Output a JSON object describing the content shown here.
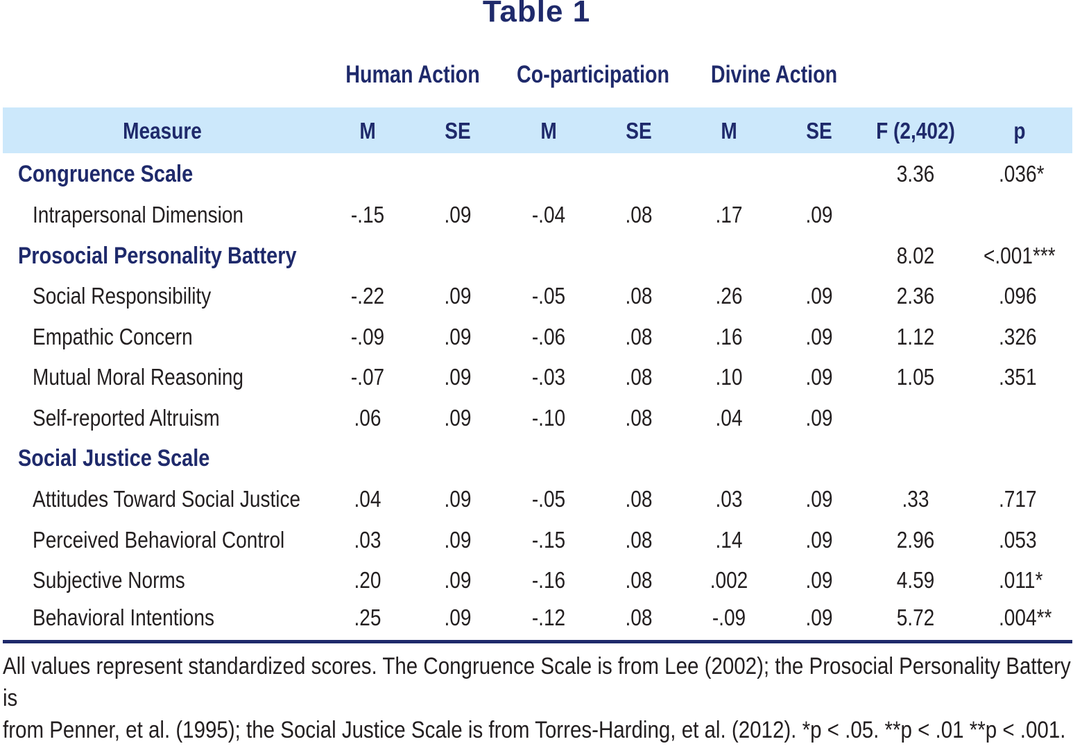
{
  "title": "Table 1",
  "groups": [
    "Human Action",
    "Co-participation",
    "Divine Action"
  ],
  "columns": [
    "Measure",
    "M",
    "SE",
    "M",
    "SE",
    "M",
    "SE",
    "F (2,402)",
    "p"
  ],
  "rows": [
    {
      "type": "section",
      "label": "Congruence Scale",
      "values": [
        "",
        "",
        "",
        "",
        "",
        "",
        "3.36",
        ".036*"
      ]
    },
    {
      "type": "item",
      "label": "Intrapersonal Dimension",
      "values": [
        "-.15",
        ".09",
        "-.04",
        ".08",
        ".17",
        ".09",
        "",
        ""
      ]
    },
    {
      "type": "section",
      "label": "Prosocial Personality Battery",
      "values": [
        "",
        "",
        "",
        "",
        "",
        "",
        "8.02",
        "<.001***"
      ]
    },
    {
      "type": "item",
      "label": "Social Responsibility",
      "values": [
        "-.22",
        ".09",
        "-.05",
        ".08",
        ".26",
        ".09",
        "2.36",
        ".096"
      ]
    },
    {
      "type": "item",
      "label": "Empathic Concern",
      "values": [
        "-.09",
        ".09",
        "-.06",
        ".08",
        ".16",
        ".09",
        "1.12",
        ".326"
      ]
    },
    {
      "type": "item",
      "label": "Mutual Moral Reasoning",
      "values": [
        "-.07",
        ".09",
        "-.03",
        ".08",
        ".10",
        ".09",
        "1.05",
        ".351"
      ]
    },
    {
      "type": "item",
      "label": "Self-reported Altruism",
      "values": [
        ".06",
        ".09",
        "-.10",
        ".08",
        ".04",
        ".09",
        "",
        ""
      ]
    },
    {
      "type": "section",
      "label": "Social Justice Scale",
      "values": [
        "",
        "",
        "",
        "",
        "",
        "",
        "",
        ""
      ]
    },
    {
      "type": "item",
      "label": "Attitudes Toward Social Justice",
      "values": [
        ".04",
        ".09",
        "-.05",
        ".08",
        ".03",
        ".09",
        ".33",
        ".717"
      ]
    },
    {
      "type": "item",
      "label": "Perceived Behavioral Control",
      "values": [
        ".03",
        ".09",
        "-.15",
        ".08",
        ".14",
        ".09",
        "2.96",
        ".053"
      ]
    },
    {
      "type": "item",
      "label": "Subjective Norms",
      "values": [
        ".20",
        ".09",
        "-.16",
        ".08",
        ".002",
        ".09",
        "4.59",
        ".011*"
      ]
    },
    {
      "type": "item",
      "label": "Behavioral Intentions",
      "values": [
        ".25",
        ".09",
        "-.12",
        ".08",
        "-.09",
        ".09",
        "5.72",
        ".004**"
      ]
    }
  ],
  "note_line1": "All values represent standardized scores. The Congruence Scale is from Lee (2002); the Prosocial Personality Battery is",
  "note_line2": "from Penner, et al. (1995); the Social Justice Scale is from Torres-Harding, et al. (2012). *p < .05. **p < .01 **p < .001.",
  "colors": {
    "heading": "#1f2a6b",
    "header_band": "#cce8fb",
    "body_text": "#231f20"
  }
}
